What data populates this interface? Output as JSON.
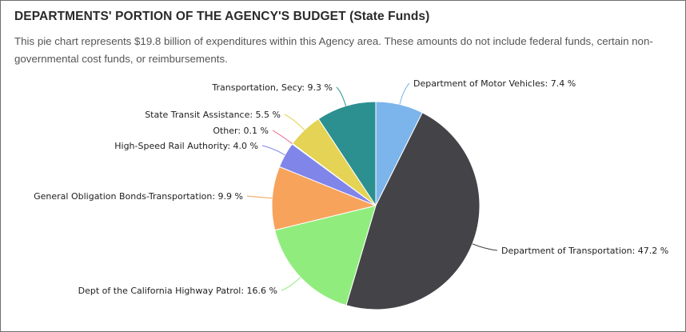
{
  "header": {
    "title": "DEPARTMENTS' PORTION OF THE AGENCY'S BUDGET (State Funds)",
    "description": "This pie chart represents $19.8 billion of expenditures within this Agency area. These amounts do not include federal funds, certain non-governmental cost funds, or reimbursements."
  },
  "chart_data": {
    "type": "pie",
    "title": "DEPARTMENTS' PORTION OF THE AGENCY'S BUDGET (State Funds)",
    "unit": "%",
    "slices": [
      {
        "label": "Department of Motor Vehicles",
        "value": 7.4,
        "text": "Department of Motor Vehicles: 7.4 %",
        "color": "#7cb5ec"
      },
      {
        "label": "Department of Transportation",
        "value": 47.2,
        "text": "Department of Transportation: 47.2 %",
        "color": "#434348"
      },
      {
        "label": "Dept of the California Highway Patrol",
        "value": 16.6,
        "text": "Dept of the California Highway Patrol: 16.6 %",
        "color": "#90ed7d"
      },
      {
        "label": "General Obligation Bonds-Transportation",
        "value": 9.9,
        "text": "General Obligation Bonds-Transportation: 9.9 %",
        "color": "#f7a35c"
      },
      {
        "label": "High-Speed Rail Authority",
        "value": 4.0,
        "text": "High-Speed Rail Authority: 4.0 %",
        "color": "#8085e9"
      },
      {
        "label": "Other",
        "value": 0.1,
        "text": "Other: 0.1 %",
        "color": "#f15c80"
      },
      {
        "label": "State Transit Assistance",
        "value": 5.5,
        "text": "State Transit Assistance: 5.5 %",
        "color": "#e4d354"
      },
      {
        "label": "Transportation, Secy",
        "value": 9.3,
        "text": "Transportation, Secy: 9.3 %",
        "color": "#2b908f"
      }
    ]
  }
}
